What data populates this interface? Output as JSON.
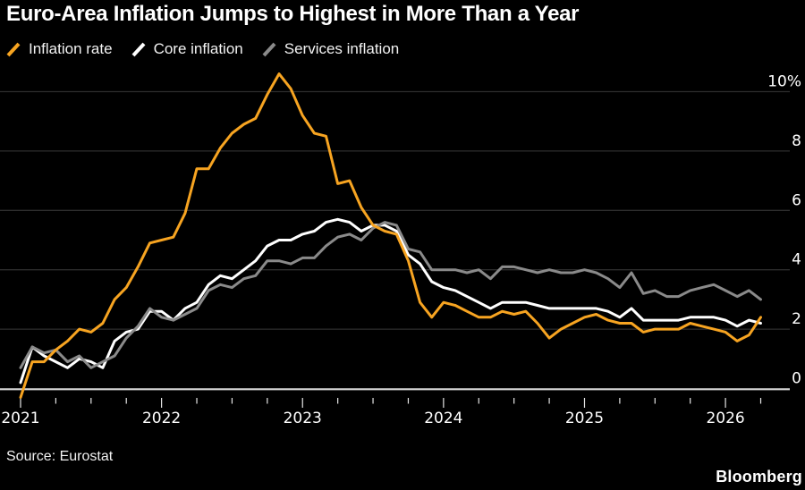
{
  "title": "Euro-Area Inflation Jumps to Highest in More Than a Year",
  "source": "Source: Eurostat",
  "branding": "Bloomberg",
  "legend": {
    "items": [
      {
        "label": "Inflation rate"
      },
      {
        "label": "Core inflation"
      },
      {
        "label": "Services inflation"
      }
    ]
  },
  "chart_data": {
    "type": "line",
    "title": "Euro-Area Inflation Jumps to Highest in More Than a Year",
    "x_unit": "month",
    "x_range": [
      "2021-01",
      "2026-04"
    ],
    "x_tick_labels": [
      "2021",
      "2022",
      "2023",
      "2024",
      "2025",
      "2026"
    ],
    "minor_x_ticks": "quarterly",
    "ylim": [
      0,
      10
    ],
    "y_ticks": [
      {
        "value": 0,
        "label": "0"
      },
      {
        "value": 2,
        "label": "2"
      },
      {
        "value": 4,
        "label": "4"
      },
      {
        "value": 6,
        "label": "6"
      },
      {
        "value": 8,
        "label": "8"
      },
      {
        "value": 10,
        "label": "10%"
      }
    ],
    "grid": "horizontal-only",
    "legend_position": "top-left",
    "background_color": "#000000",
    "grid_color": "#2d2d2d",
    "axis_color": "#d9d9d9",
    "text_color": "#ffffff",
    "series": [
      {
        "name": "Inflation rate",
        "color": "#F7A421",
        "values": [
          -0.3,
          0.9,
          0.9,
          1.3,
          1.6,
          2.0,
          1.9,
          2.2,
          3.0,
          3.4,
          4.1,
          4.9,
          5.0,
          5.1,
          5.9,
          7.4,
          7.4,
          8.1,
          8.6,
          8.9,
          9.1,
          9.9,
          10.6,
          10.1,
          9.2,
          8.6,
          8.5,
          6.9,
          7.0,
          6.1,
          5.5,
          5.3,
          5.2,
          4.3,
          2.9,
          2.4,
          2.9,
          2.8,
          2.6,
          2.4,
          2.4,
          2.6,
          2.5,
          2.6,
          2.2,
          1.7,
          2.0,
          2.2,
          2.4,
          2.5,
          2.3,
          2.2,
          2.2,
          1.9,
          2.0,
          2.0,
          2.0,
          2.2,
          2.1,
          2.0,
          1.9,
          1.6,
          1.8,
          2.4
        ]
      },
      {
        "name": "Core inflation",
        "color": "#FFFFFF",
        "values": [
          0.2,
          1.4,
          1.1,
          0.9,
          0.7,
          1.0,
          0.9,
          0.7,
          1.6,
          1.9,
          2.0,
          2.6,
          2.6,
          2.3,
          2.7,
          2.9,
          3.5,
          3.8,
          3.7,
          4.0,
          4.3,
          4.8,
          5.0,
          5.0,
          5.2,
          5.3,
          5.6,
          5.7,
          5.6,
          5.3,
          5.5,
          5.5,
          5.3,
          4.5,
          4.2,
          3.6,
          3.4,
          3.3,
          3.1,
          2.9,
          2.7,
          2.9,
          2.9,
          2.9,
          2.8,
          2.7,
          2.7,
          2.7,
          2.7,
          2.7,
          2.6,
          2.4,
          2.7,
          2.3,
          2.3,
          2.3,
          2.3,
          2.4,
          2.4,
          2.4,
          2.3,
          2.1,
          2.3,
          2.2
        ]
      },
      {
        "name": "Services inflation",
        "color": "#8A8A8A",
        "values": [
          0.7,
          1.4,
          1.2,
          1.3,
          0.9,
          1.1,
          0.7,
          0.9,
          1.1,
          1.7,
          2.1,
          2.7,
          2.4,
          2.3,
          2.5,
          2.7,
          3.3,
          3.5,
          3.4,
          3.7,
          3.8,
          4.3,
          4.3,
          4.2,
          4.4,
          4.4,
          4.8,
          5.1,
          5.2,
          5.0,
          5.4,
          5.6,
          5.5,
          4.7,
          4.6,
          4.0,
          4.0,
          4.0,
          3.9,
          4.0,
          3.7,
          4.1,
          4.1,
          4.0,
          3.9,
          4.0,
          3.9,
          3.9,
          4.0,
          3.9,
          3.7,
          3.4,
          3.9,
          3.2,
          3.3,
          3.1,
          3.1,
          3.3,
          3.4,
          3.5,
          3.3,
          3.1,
          3.3,
          3.0
        ]
      }
    ]
  }
}
